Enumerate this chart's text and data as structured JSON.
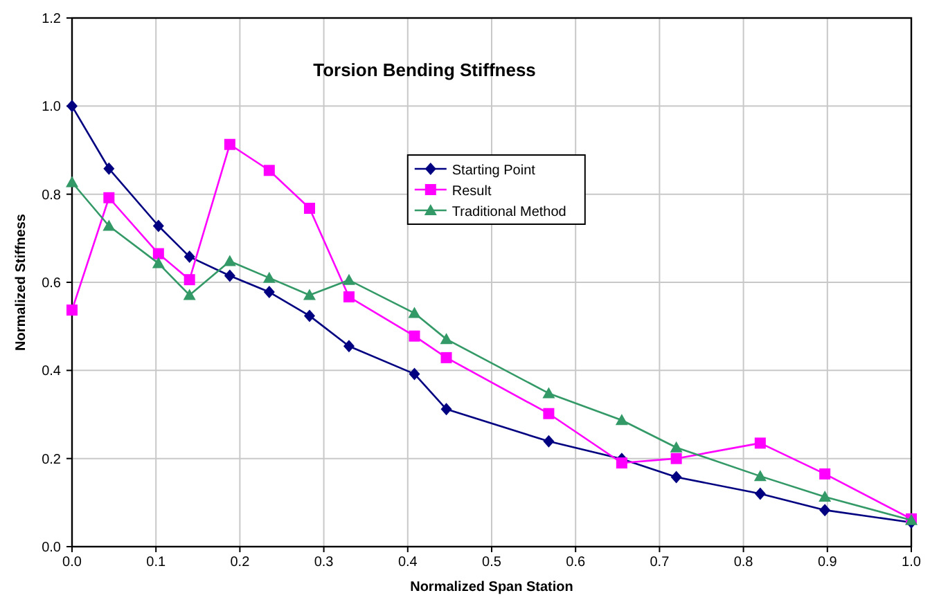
{
  "chart_data": {
    "type": "line",
    "title": "Torsion Bending Stiffness",
    "xlabel": "Normalized Span Station",
    "ylabel": "Normalized Stiffness",
    "x": [
      0,
      0.044,
      0.103,
      0.14,
      0.188,
      0.235,
      0.283,
      0.33,
      0.408,
      0.446,
      0.568,
      0.655,
      0.72,
      0.82,
      0.897,
      1.0
    ],
    "series": [
      {
        "name": "Starting Point",
        "color": "#000080",
        "marker": "diamond",
        "values": [
          1.0,
          0.858,
          0.728,
          0.658,
          0.615,
          0.578,
          0.524,
          0.455,
          0.392,
          0.312,
          0.239,
          0.199,
          0.158,
          0.12,
          0.083,
          0.055
        ]
      },
      {
        "name": "Result",
        "color": "#ff00ff",
        "marker": "square",
        "values": [
          0.537,
          0.792,
          0.665,
          0.606,
          0.913,
          0.854,
          0.768,
          0.567,
          0.478,
          0.429,
          0.302,
          0.19,
          0.2,
          0.235,
          0.165,
          0.063
        ]
      },
      {
        "name": "Traditional Method",
        "color": "#339966",
        "marker": "triangle",
        "values": [
          0.827,
          0.728,
          0.643,
          0.571,
          0.648,
          0.61,
          0.571,
          0.605,
          0.53,
          0.471,
          0.348,
          0.287,
          0.225,
          0.16,
          0.113,
          0.06
        ]
      }
    ],
    "xlim": [
      0,
      1
    ],
    "ylim": [
      0,
      1.2
    ],
    "xticks": [
      {
        "value": 0,
        "label": "0.0"
      },
      0.1,
      0.2,
      0.3,
      0.4,
      0.5,
      0.6,
      0.7,
      0.8,
      0.9,
      {
        "value": 1,
        "label": "1.0"
      }
    ],
    "yticks": [
      {
        "value": 0,
        "label": "0.0"
      },
      0.2,
      0.4,
      0.6,
      0.8,
      {
        "value": 1,
        "label": "1.0"
      },
      1.2
    ],
    "grid": true,
    "legend": "top right",
    "line_style": "solid"
  }
}
